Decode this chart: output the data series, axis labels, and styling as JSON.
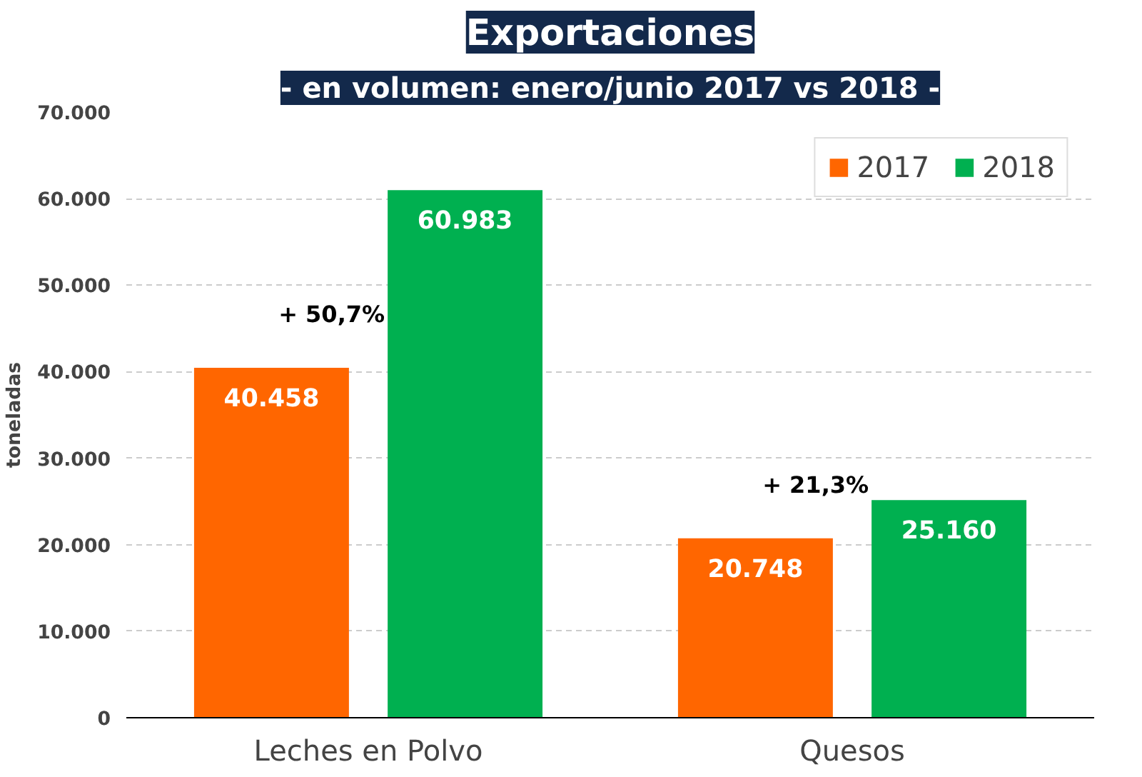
{
  "chart_data": {
    "type": "bar",
    "title": "Exportaciones",
    "subtitle": "- en volumen: enero/junio 2017 vs 2018 -",
    "ylabel": "toneladas",
    "categories": [
      "Leches en Polvo",
      "Quesos"
    ],
    "series": [
      {
        "name": "2017",
        "color": "#ff6600",
        "values": [
          40458,
          20748
        ],
        "value_labels": [
          "40.458",
          "20.748"
        ]
      },
      {
        "name": "2018",
        "color": "#00b050",
        "values": [
          60983,
          25160
        ],
        "value_labels": [
          "60.983",
          "25.160"
        ]
      }
    ],
    "ylim": [
      0,
      70000
    ],
    "yticks": [
      {
        "value": 0,
        "label": "0"
      },
      {
        "value": 10000,
        "label": "10.000"
      },
      {
        "value": 20000,
        "label": "20.000"
      },
      {
        "value": 30000,
        "label": "30.000"
      },
      {
        "value": 40000,
        "label": "40.000"
      },
      {
        "value": 50000,
        "label": "50.000"
      },
      {
        "value": 60000,
        "label": "60.000"
      },
      {
        "value": 70000,
        "label": "70.000"
      }
    ],
    "annotations": [
      "+ 50,7%",
      "+ 21,3%"
    ],
    "grid": "y",
    "legend": "top right"
  }
}
